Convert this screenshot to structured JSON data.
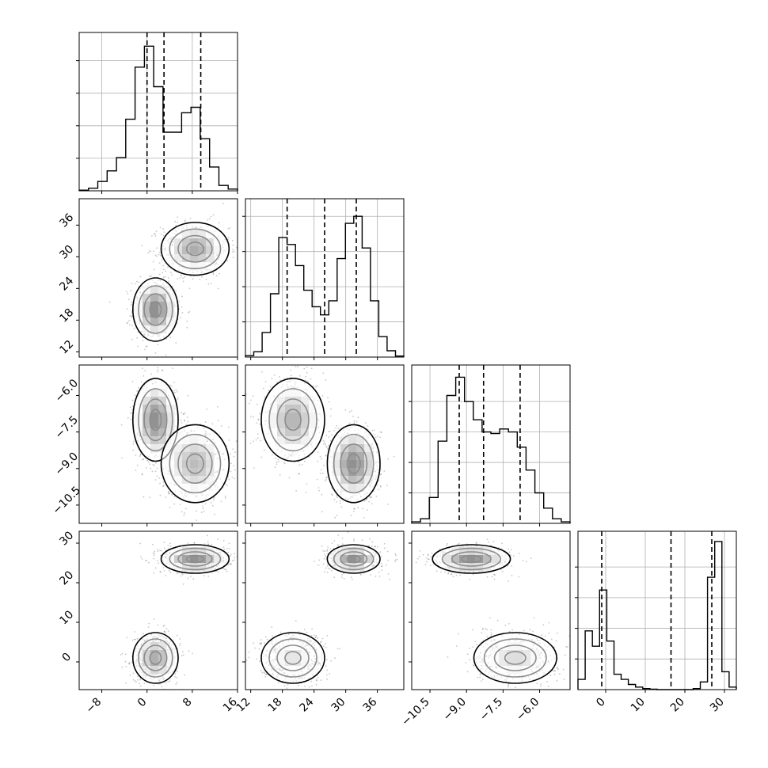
{
  "chart_data": {
    "type": "corner",
    "grid": true,
    "variables": [
      {
        "range": [
          -12,
          16
        ],
        "ticks": [
          "−8",
          "0",
          "8",
          "16"
        ],
        "tick_values": [
          -8,
          0,
          8,
          16
        ],
        "quantiles": [
          0.0,
          3.0,
          9.5
        ],
        "hist": [
          0.3,
          1.2,
          4.3,
          9.2,
          15.3,
          33.0,
          57.0,
          66.7,
          48.0,
          27.0,
          27.0,
          36.0,
          38.5,
          24.0,
          11.0,
          2.5,
          0.8
        ]
      },
      {
        "range": [
          11,
          41
        ],
        "ticks": [
          "12",
          "18",
          "24",
          "30",
          "36"
        ],
        "tick_values": [
          12,
          18,
          24,
          30,
          36
        ],
        "quantiles": [
          18.9,
          26.0,
          32.0
        ],
        "hist": [
          0.4,
          1.5,
          7.0,
          18.0,
          34.0,
          32.0,
          26.0,
          19.0,
          14.3,
          12.0,
          16.0,
          28.0,
          38.0,
          40.0,
          31.0,
          16.0,
          5.8,
          1.8,
          0.3
        ]
      },
      {
        "range": [
          -11.25,
          -4.75
        ],
        "ticks": [
          "−10.5",
          "−9.0",
          "−7.5",
          "−6.0"
        ],
        "tick_values": [
          -10.5,
          -9.0,
          -7.5,
          -6.0
        ],
        "quantiles": [
          -9.3,
          -8.3,
          -6.8
        ],
        "hist": [
          0.5,
          1.5,
          8.5,
          27.0,
          42.0,
          48.0,
          40.0,
          34.0,
          30.0,
          29.5,
          31.0,
          30.0,
          25.0,
          17.5,
          10.0,
          5.0,
          1.5,
          0.5
        ]
      },
      {
        "range": [
          -7,
          33
        ],
        "ticks": [
          "0",
          "10",
          "20",
          "30"
        ],
        "tick_values": [
          0,
          10,
          20,
          30
        ],
        "quantiles": [
          -1.0,
          16.5,
          26.8
        ],
        "hist": [
          2.0,
          11.5,
          8.5,
          19.5,
          9.5,
          3.0,
          2.0,
          1.0,
          0.5,
          0.2,
          0.1,
          0,
          0,
          0,
          0,
          0,
          0.2,
          1.5,
          22.0,
          29.0,
          3.5,
          0.5
        ]
      }
    ],
    "hist_ylim": [
      [
        0,
        73
      ],
      [
        0,
        45
      ],
      [
        0,
        52
      ],
      [
        0,
        31
      ]
    ],
    "hist_ticks": [
      [
        15,
        30,
        45,
        60
      ],
      [
        10,
        20,
        30,
        40
      ],
      [
        10,
        20,
        30,
        40
      ],
      [
        6,
        12,
        18,
        24
      ]
    ],
    "clusters": [
      {
        "weight": 0.5,
        "mean": [
          1.5,
          20.0,
          -7.0,
          1.0
        ],
        "std": [
          2.0,
          3.0,
          0.85,
          3.2
        ]
      },
      {
        "weight": 0.5,
        "mean": [
          8.5,
          31.5,
          -8.8,
          26.0
        ],
        "std": [
          3.0,
          2.5,
          0.8,
          1.8
        ]
      }
    ]
  }
}
